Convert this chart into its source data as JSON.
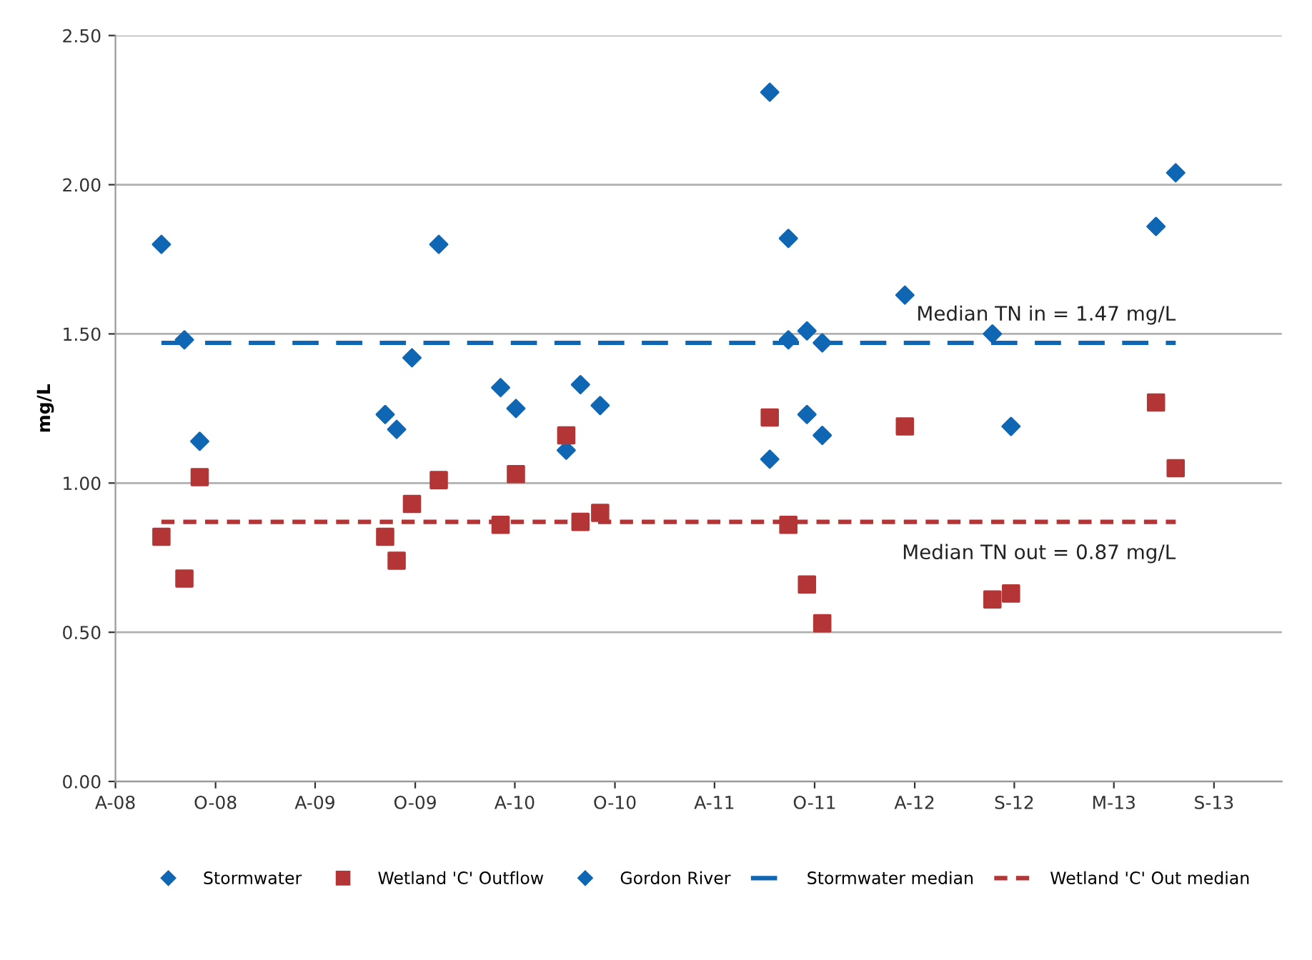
{
  "chart_data": {
    "type": "scatter",
    "ylabel": "mg/L",
    "xlim": [
      "2008-04-01",
      "2014-02-01"
    ],
    "xticks": [
      {
        "value": "2008-04-01",
        "label": "A-08"
      },
      {
        "value": "2008-10-01",
        "label": "O-08"
      },
      {
        "value": "2009-04-01",
        "label": "A-09"
      },
      {
        "value": "2009-10-01",
        "label": "O-09"
      },
      {
        "value": "2010-04-01",
        "label": "A-10"
      },
      {
        "value": "2010-10-01",
        "label": "O-10"
      },
      {
        "value": "2011-04-01",
        "label": "A-11"
      },
      {
        "value": "2011-10-01",
        "label": "O-11"
      },
      {
        "value": "2012-04-01",
        "label": "A-12"
      },
      {
        "value": "2012-09-30",
        "label": "S-12"
      },
      {
        "value": "2013-03-31",
        "label": "M-13"
      },
      {
        "value": "2013-09-30",
        "label": "S-13"
      }
    ],
    "ylim": [
      0,
      2.5
    ],
    "yticks": [
      {
        "value": 0,
        "label": "0.00"
      },
      {
        "value": 0.5,
        "label": "0.50"
      },
      {
        "value": 1,
        "label": "1.00"
      },
      {
        "value": 1.5,
        "label": "1.50"
      },
      {
        "value": 2,
        "label": "2.00"
      },
      {
        "value": 2.5,
        "label": "2.50"
      }
    ],
    "grid": "y",
    "legend": "bottom",
    "annotations": [
      {
        "text": "Median TN in = 1.47 mg/L",
        "x": "2013-07-22",
        "y": 1.47
      },
      {
        "text": "Median TN out = 0.87 mg/L",
        "x": "2013-07-22",
        "y": 0.87
      }
    ],
    "series": [
      {
        "name": "Stormwater",
        "marker": "diamond",
        "color": "#0f67b4",
        "x": [
          "2008-06-24",
          "2008-08-05",
          "2008-09-02",
          "2009-08-07",
          "2009-08-28",
          "2009-09-25",
          "2009-11-13",
          "2010-03-06",
          "2010-04-03",
          "2010-07-04",
          "2010-07-30",
          "2010-09-04",
          "2011-07-11",
          "2011-08-14",
          "2011-09-17",
          "2011-10-15",
          "2012-03-14",
          "2012-08-21",
          "2012-09-24",
          "2013-06-16",
          "2013-07-22"
        ],
        "values": [
          1.8,
          1.48,
          1.14,
          1.23,
          1.18,
          1.42,
          1.8,
          1.32,
          1.25,
          1.11,
          1.33,
          1.26,
          2.31,
          1.48,
          1.51,
          1.47,
          1.63,
          1.5,
          1.19,
          1.86,
          2.04
        ]
      },
      {
        "name": "Wetland 'C' Outflow",
        "marker": "square",
        "color": "#b33535",
        "x": [
          "2008-06-24",
          "2008-08-05",
          "2008-09-02",
          "2009-08-07",
          "2009-08-28",
          "2009-09-25",
          "2009-11-13",
          "2010-03-06",
          "2010-04-03",
          "2010-07-04",
          "2010-07-30",
          "2010-09-04",
          "2011-07-11",
          "2011-08-14",
          "2011-09-17",
          "2011-10-15",
          "2012-03-14",
          "2012-08-21",
          "2012-09-24",
          "2013-06-16",
          "2013-07-22"
        ],
        "values": [
          0.82,
          0.68,
          1.02,
          0.82,
          0.74,
          0.93,
          1.01,
          0.86,
          1.03,
          1.16,
          0.87,
          0.9,
          1.22,
          0.86,
          0.66,
          0.53,
          1.19,
          0.61,
          0.63,
          1.27,
          1.05
        ]
      },
      {
        "name": "Gordon River",
        "marker": "diamond",
        "color": "#0f67b4",
        "x": [
          "2011-07-11",
          "2011-08-14",
          "2011-09-17",
          "2011-10-15"
        ],
        "values": [
          1.08,
          1.82,
          1.23,
          1.16
        ]
      },
      {
        "name": "Stormwater median",
        "type": "line",
        "line_style": "dashed",
        "color": "#0f67b4",
        "x": [
          "2008-06-24",
          "2013-07-22"
        ],
        "values": [
          1.47,
          1.47
        ]
      },
      {
        "name": "Wetland 'C' Out median",
        "type": "line",
        "line_style": "dotted",
        "color": "#b33535",
        "x": [
          "2008-06-24",
          "2013-07-22"
        ],
        "values": [
          0.87,
          0.87
        ]
      }
    ]
  }
}
